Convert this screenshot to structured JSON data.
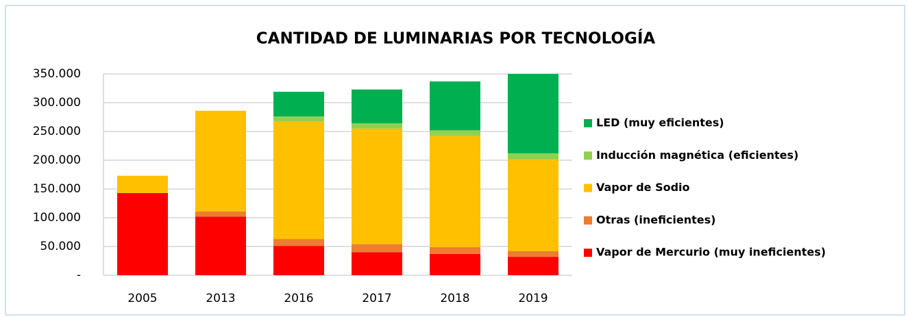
{
  "chart_data": {
    "type": "stacked_bar",
    "title": "CANTIDAD DE LUMINARIAS POR TECNOLOGÍA",
    "categories": [
      "2005",
      "2013",
      "2016",
      "2017",
      "2018",
      "2019"
    ],
    "series": [
      {
        "name": "Vapor de Mercurio (muy ineficientes)",
        "color": "#ff0000",
        "values": [
          143000,
          102000,
          51000,
          40000,
          37000,
          32000
        ]
      },
      {
        "name": "Otras (ineficientes)",
        "color": "#ed7d31",
        "values": [
          0,
          9000,
          12000,
          14000,
          12000,
          10000
        ]
      },
      {
        "name": "Vapor de Sodio",
        "color": "#ffc000",
        "values": [
          30000,
          175000,
          204000,
          201000,
          193000,
          159000
        ]
      },
      {
        "name": "Inducción magnética (eficientes)",
        "color": "#92d050",
        "values": [
          0,
          0,
          9000,
          9000,
          10000,
          11000
        ]
      },
      {
        "name": "LED (muy eficientes)",
        "color": "#00b050",
        "values": [
          0,
          0,
          43000,
          59000,
          85000,
          138000
        ]
      }
    ],
    "ylim": [
      0,
      350000
    ],
    "yticks": [
      {
        "value": 0,
        "label": "-"
      },
      {
        "value": 50000,
        "label": "50.000"
      },
      {
        "value": 100000,
        "label": "100.000"
      },
      {
        "value": 150000,
        "label": "150.000"
      },
      {
        "value": 200000,
        "label": "200.000"
      },
      {
        "value": 250000,
        "label": "250.000"
      },
      {
        "value": 300000,
        "label": "300.000"
      },
      {
        "value": 350000,
        "label": "350.000"
      }
    ],
    "grid": true,
    "legend": "right"
  }
}
